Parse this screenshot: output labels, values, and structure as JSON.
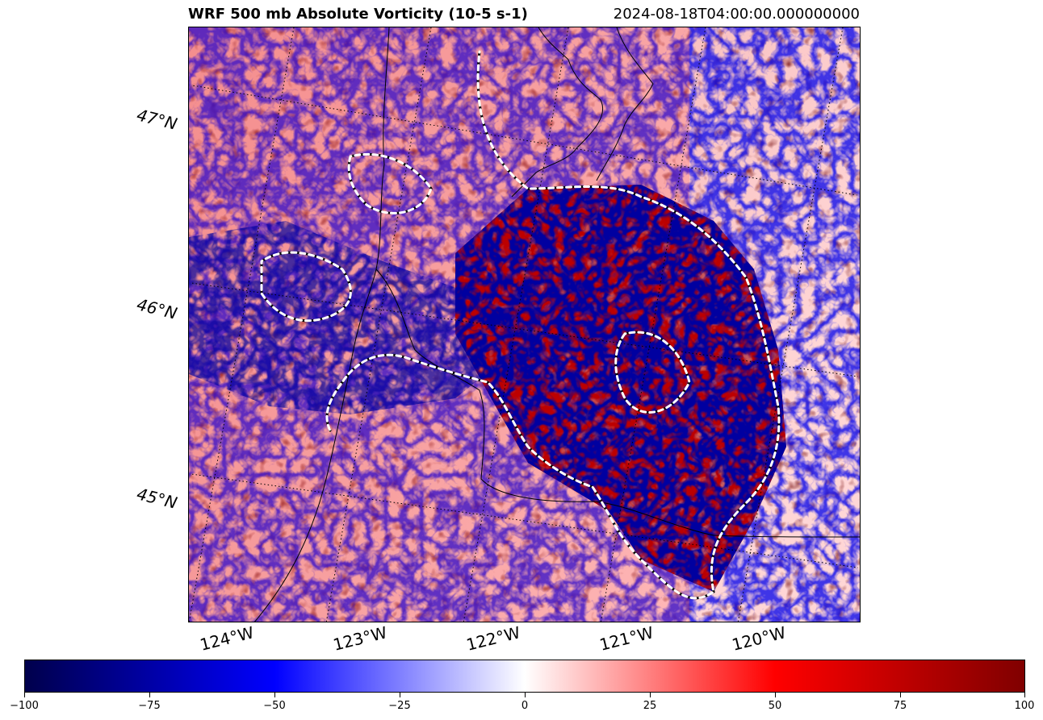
{
  "title": {
    "main": "WRF 500 mb Absolute Vorticity (10-5 s-1)",
    "time": "2024-08-18T04:00:00.000000000"
  },
  "map": {
    "lat_labels": [
      "47°N",
      "46°N",
      "45°N"
    ],
    "lon_labels": [
      "124°W",
      "123°W",
      "122°W",
      "121°W",
      "120°W"
    ]
  },
  "colorbar": {
    "ticks": [
      "−100",
      "−75",
      "−50",
      "−25",
      "0",
      "25",
      "50",
      "75",
      "100"
    ],
    "vmin": -100,
    "vmax": 100,
    "colormap": [
      "#00004c",
      "#0000ff",
      "#ffffff",
      "#ff0000",
      "#800000"
    ]
  }
}
